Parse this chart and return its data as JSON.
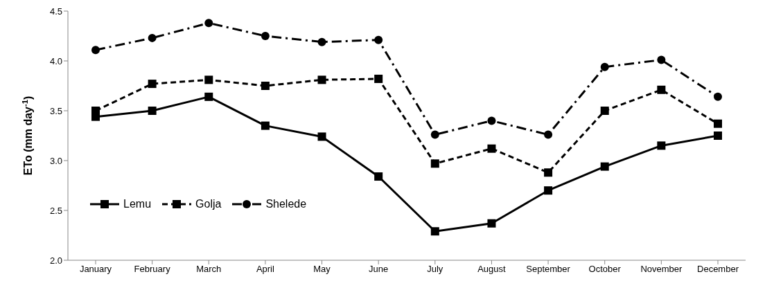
{
  "chart_data": {
    "type": "line",
    "ylabel": "ETo (mm day$^{-1}$)",
    "categories": [
      "January",
      "February",
      "March",
      "April",
      "May",
      "June",
      "July",
      "August",
      "September",
      "October",
      "November",
      "December"
    ],
    "series": [
      {
        "name": "Lemu",
        "color": "#000000",
        "marker": "square",
        "line_style": "solid",
        "values": [
          3.44,
          3.5,
          3.64,
          3.35,
          3.24,
          2.84,
          2.29,
          2.37,
          2.7,
          2.94,
          3.15,
          3.25
        ]
      },
      {
        "name": "Golja",
        "color": "#000000",
        "marker": "square",
        "line_style": "dashed",
        "values": [
          3.5,
          3.77,
          3.81,
          3.75,
          3.81,
          3.82,
          2.97,
          3.12,
          2.88,
          3.5,
          3.71,
          3.37
        ]
      },
      {
        "name": "Shelede",
        "color": "#000000",
        "marker": "circle",
        "line_style": "dashdot",
        "values": [
          4.11,
          4.23,
          4.38,
          4.25,
          4.19,
          4.21,
          3.26,
          3.4,
          3.26,
          3.94,
          4.01,
          3.64
        ]
      }
    ],
    "ylim": [
      2.0,
      4.5
    ],
    "yticks": [
      {
        "value": 2.0,
        "label": "2.0"
      },
      {
        "value": 2.5,
        "label": "2.5"
      },
      {
        "value": 3.0,
        "label": "3.0"
      },
      {
        "value": 3.5,
        "label": "3.5"
      },
      {
        "value": 4.0,
        "label": "4.0"
      },
      {
        "value": 4.5,
        "label": "4.5"
      }
    ],
    "grid": false,
    "legend": "left",
    "tick_labels": [
      "x",
      "y"
    ]
  }
}
